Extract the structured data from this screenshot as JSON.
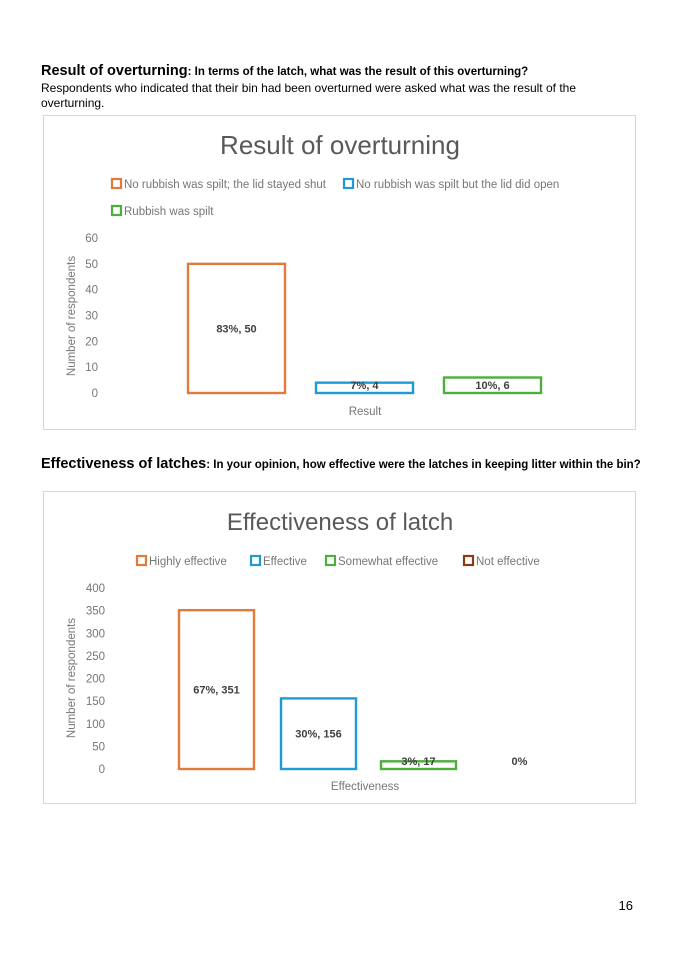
{
  "section1": {
    "heading": "Result of overturning",
    "question": ": In terms of the latch, what was the result of this overturning?",
    "body": "Respondents who indicated that their bin had been overturned were asked what was the result of the overturning."
  },
  "section2": {
    "heading": "Effectiveness of latches",
    "question": ": In your opinion, how effective were the latches in keeping litter within the bin?"
  },
  "page_number": "16",
  "chart_data": [
    {
      "type": "bar",
      "title": "Result of overturning",
      "xlabel": "Result",
      "ylabel": "Number of respondents",
      "ylim": [
        0,
        60
      ],
      "yticks": [
        "60",
        "50",
        "40",
        "30",
        "20",
        "10",
        "0"
      ],
      "legend_position": "top",
      "series": [
        {
          "name": "No rubbish was spilt; the lid stayed shut",
          "value": 50,
          "label": "83%, 50",
          "color": "#e07b39"
        },
        {
          "name": "No rubbish was spilt but the lid did open",
          "value": 4,
          "label": "7%, 4",
          "color": "#1f9ad6"
        },
        {
          "name": "Rubbish was spilt",
          "value": 6,
          "label": "10%, 6",
          "color": "#4caf3b"
        }
      ]
    },
    {
      "type": "bar",
      "title": "Effectiveness of latch",
      "xlabel": "Effectiveness",
      "ylabel": "Number of respondents",
      "ylim": [
        0,
        400
      ],
      "yticks": [
        "400",
        "350",
        "300",
        "250",
        "200",
        "150",
        "100",
        "50",
        "0"
      ],
      "legend_position": "top",
      "series": [
        {
          "name": "Highly effective",
          "value": 351,
          "label": "67%, 351",
          "color": "#e07b39"
        },
        {
          "name": "Effective",
          "value": 156,
          "label": "30%, 156",
          "color": "#1f9ad6"
        },
        {
          "name": "Somewhat effective",
          "value": 17,
          "label": "3%, 17",
          "color": "#4caf3b"
        },
        {
          "name": "Not effective",
          "value": 0,
          "label": "0%",
          "color": "#8b3a14"
        }
      ]
    }
  ]
}
